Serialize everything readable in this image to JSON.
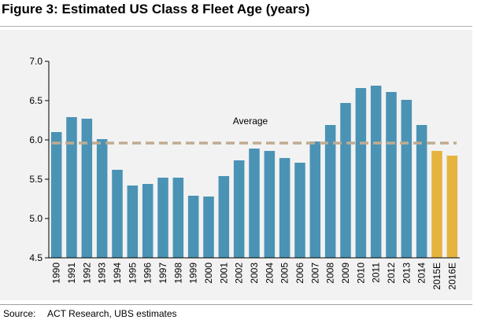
{
  "figure": {
    "title": "Figure 3: Estimated US Class 8 Fleet Age (years)",
    "source_label": "Source:",
    "source_text": "ACT Research, UBS estimates"
  },
  "chart_data": {
    "type": "bar",
    "title": "",
    "xlabel": "",
    "ylabel": "",
    "ylim": [
      4.5,
      7.0
    ],
    "yticks": [
      "4.5",
      "5.0",
      "5.5",
      "6.0",
      "6.5",
      "7.0"
    ],
    "grid": false,
    "categories": [
      "1990",
      "1991",
      "1992",
      "1993",
      "1994",
      "1995",
      "1996",
      "1997",
      "1998",
      "1999",
      "2000",
      "2001",
      "2002",
      "2003",
      "2004",
      "2005",
      "2006",
      "2007",
      "2008",
      "2009",
      "2010",
      "2011",
      "2012",
      "2013",
      "2014",
      "2015E",
      "2016E"
    ],
    "values": [
      6.1,
      6.29,
      6.27,
      6.01,
      5.62,
      5.42,
      5.44,
      5.52,
      5.52,
      5.29,
      5.28,
      5.54,
      5.74,
      5.89,
      5.86,
      5.77,
      5.71,
      5.98,
      6.19,
      6.47,
      6.66,
      6.69,
      6.61,
      6.51,
      6.19,
      5.86,
      5.8
    ],
    "bar_colors": {
      "actual": "#4a93b5",
      "estimate": "#e4b43e"
    },
    "estimate_categories": [
      "2015E",
      "2016E"
    ],
    "average": {
      "label": "Average",
      "value": 5.96,
      "color": "#c0ab92"
    }
  }
}
